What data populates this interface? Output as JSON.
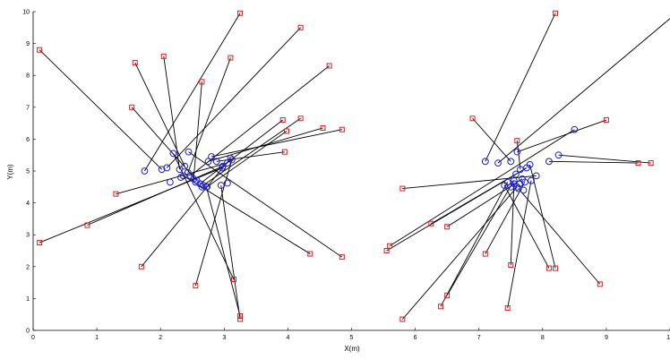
{
  "chart_data": {
    "type": "scatter",
    "title": "",
    "xlabel": "X(m)",
    "ylabel": "Y(m)",
    "xlim": [
      0,
      10
    ],
    "ylim": [
      0,
      10
    ],
    "xticks": [
      "0",
      "1",
      "2",
      "3",
      "4",
      "5",
      "6",
      "7",
      "8",
      "9",
      "10"
    ],
    "yticks": [
      "0",
      "1",
      "2",
      "3",
      "4",
      "5",
      "6",
      "7",
      "8",
      "9",
      "10"
    ],
    "grid": false,
    "legend": "none",
    "colors": {
      "anchor": "#e41a1c",
      "node": "#1f1fd0",
      "line": "#000000"
    },
    "series": [
      {
        "marker": "square",
        "x": [
          3.25,
          0.1,
          4.2,
          2.05,
          1.6,
          3.1,
          4.65,
          2.65,
          1.55,
          3.92,
          4.2,
          3.98,
          4.55,
          4.85,
          3.95,
          0.1,
          0.85,
          1.3,
          1.7,
          2.55,
          4.35,
          4.85,
          3.15,
          3.25,
          3.25
        ],
        "y": [
          9.95,
          8.8,
          9.5,
          8.6,
          8.4,
          8.55,
          8.3,
          7.8,
          7.0,
          6.6,
          6.65,
          6.25,
          6.35,
          6.3,
          5.6,
          2.75,
          3.3,
          4.28,
          2.0,
          1.4,
          2.4,
          2.3,
          1.6,
          0.45,
          0.35
        ]
      },
      {
        "marker": "circle",
        "x": [
          1.75,
          2.02,
          2.1,
          2.3,
          2.38,
          2.43,
          2.47,
          2.52,
          2.57,
          2.62,
          2.67,
          2.73,
          2.75,
          2.8,
          2.88,
          2.97,
          2.98,
          3.05,
          3.1,
          3.12,
          2.36,
          2.44,
          2.2,
          2.72,
          2.95,
          3.05,
          2.32,
          2.55,
          2.65,
          2.15
        ],
        "y": [
          5.0,
          5.05,
          5.1,
          5.05,
          5.15,
          4.95,
          4.85,
          4.75,
          4.7,
          4.6,
          4.55,
          4.5,
          5.3,
          5.45,
          5.3,
          5.1,
          5.15,
          5.25,
          5.4,
          5.35,
          4.85,
          5.6,
          5.55,
          4.5,
          4.55,
          4.62,
          4.8,
          4.65,
          4.5,
          4.65
        ]
      },
      {
        "marker": "square",
        "x": [
          8.2,
          10.1,
          9.0,
          6.9,
          7.6,
          8.2,
          5.8,
          9.5,
          9.7,
          5.6,
          5.55,
          6.25,
          6.5,
          7.1,
          7.5,
          8.1,
          8.9,
          7.45,
          6.5,
          6.4,
          5.8
        ],
        "y": [
          9.95,
          9.95,
          6.6,
          6.65,
          5.95,
          1.95,
          4.45,
          5.25,
          5.25,
          2.65,
          2.5,
          3.35,
          3.25,
          2.4,
          2.05,
          1.95,
          1.45,
          0.7,
          1.1,
          0.75,
          0.35
        ]
      },
      {
        "marker": "circle",
        "x": [
          7.1,
          7.3,
          7.6,
          7.5,
          7.65,
          7.8,
          7.9,
          8.1,
          8.25,
          8.5,
          7.75,
          7.58,
          7.68,
          7.72,
          7.55,
          7.4,
          7.62,
          7.82,
          7.55,
          7.45,
          7.6,
          7.7,
          7.5,
          7.64
        ],
        "y": [
          5.3,
          5.25,
          5.6,
          5.3,
          5.05,
          5.2,
          4.85,
          5.3,
          5.5,
          6.3,
          5.1,
          4.9,
          4.75,
          4.65,
          4.6,
          4.55,
          4.45,
          4.7,
          4.7,
          4.65,
          4.5,
          4.4,
          4.5,
          4.6
        ]
      }
    ]
  }
}
